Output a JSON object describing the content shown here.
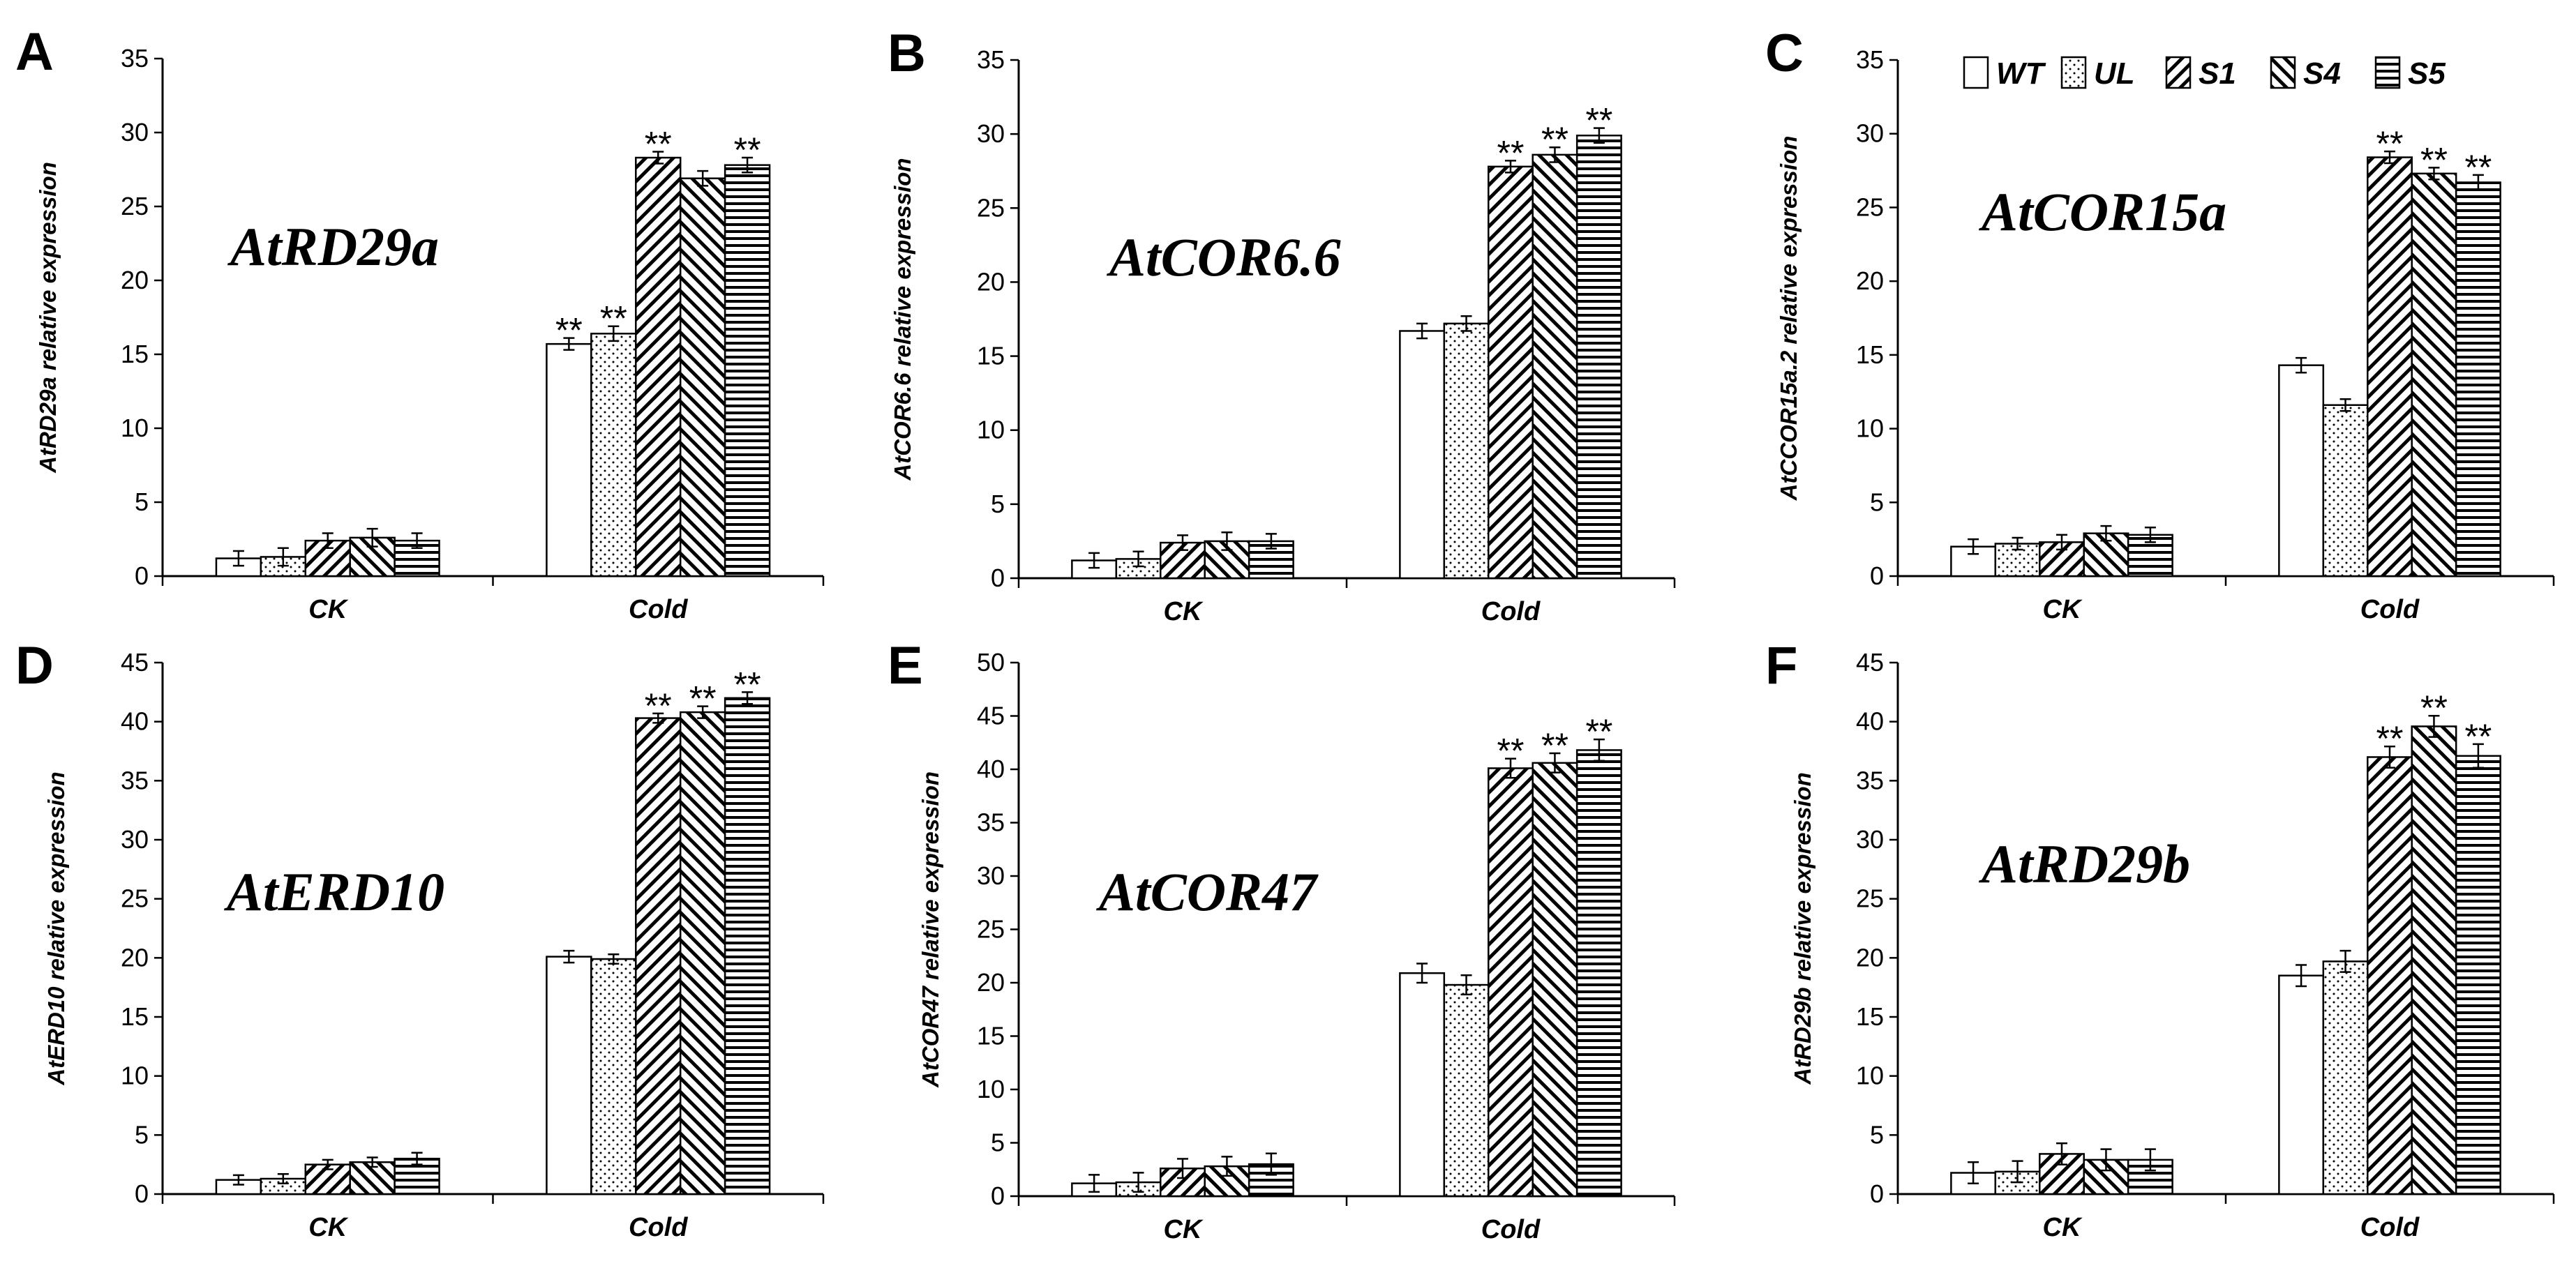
{
  "figure": {
    "legend": [
      {
        "key": "WT",
        "label": "WT",
        "pattern": "solid-white"
      },
      {
        "key": "UL",
        "label": "UL",
        "pattern": "dots"
      },
      {
        "key": "S1",
        "label": "S1",
        "pattern": "diag-down"
      },
      {
        "key": "S4",
        "label": "S4",
        "pattern": "diag-up"
      },
      {
        "key": "S5",
        "label": "S5",
        "pattern": "horizontal"
      }
    ],
    "colors": {
      "stroke": "#000000",
      "fill": "#ffffff"
    }
  },
  "chart_data": [
    {
      "panel": "A",
      "type": "bar",
      "gene_label": "AtRD29a",
      "ylabel": "AtRD29a relative expression",
      "ylim": [
        0,
        35
      ],
      "yticks": [
        0,
        5,
        10,
        15,
        20,
        25,
        30,
        35
      ],
      "categories": [
        "CK",
        "Cold"
      ],
      "series": [
        {
          "name": "WT",
          "values": [
            1.2,
            15.7
          ],
          "errors": [
            0.5,
            0.4
          ]
        },
        {
          "name": "UL",
          "values": [
            1.3,
            16.4
          ],
          "errors": [
            0.6,
            0.5
          ]
        },
        {
          "name": "S1",
          "values": [
            2.4,
            28.3
          ],
          "errors": [
            0.5,
            0.4
          ]
        },
        {
          "name": "S4",
          "values": [
            2.6,
            26.9
          ],
          "errors": [
            0.6,
            0.5
          ]
        },
        {
          "name": "S5",
          "values": [
            2.4,
            27.8
          ],
          "errors": [
            0.5,
            0.5
          ]
        }
      ],
      "significance": [
        [
          "",
          "**"
        ],
        [
          "",
          "**"
        ],
        [
          "",
          "**"
        ],
        [
          "",
          ""
        ],
        [
          "",
          "**"
        ]
      ]
    },
    {
      "panel": "B",
      "type": "bar",
      "gene_label": "AtCOR6.6",
      "ylabel": "AtCOR6.6 relative expression",
      "ylim": [
        0,
        35
      ],
      "yticks": [
        0,
        5,
        10,
        15,
        20,
        25,
        30,
        35
      ],
      "categories": [
        "CK",
        "Cold"
      ],
      "series": [
        {
          "name": "WT",
          "values": [
            1.2,
            16.7
          ],
          "errors": [
            0.5,
            0.5
          ]
        },
        {
          "name": "UL",
          "values": [
            1.3,
            17.2
          ],
          "errors": [
            0.5,
            0.5
          ]
        },
        {
          "name": "S1",
          "values": [
            2.4,
            27.8
          ],
          "errors": [
            0.5,
            0.4
          ]
        },
        {
          "name": "S4",
          "values": [
            2.5,
            28.6
          ],
          "errors": [
            0.6,
            0.5
          ]
        },
        {
          "name": "S5",
          "values": [
            2.5,
            29.9
          ],
          "errors": [
            0.5,
            0.5
          ]
        }
      ],
      "significance": [
        [
          "",
          ""
        ],
        [
          "",
          ""
        ],
        [
          "",
          "**"
        ],
        [
          "",
          "**"
        ],
        [
          "",
          "**"
        ]
      ]
    },
    {
      "panel": "C",
      "type": "bar",
      "gene_label": "AtCOR15a",
      "ylabel": "AtCCOR15a.2 relative expression",
      "ylim": [
        0,
        35
      ],
      "yticks": [
        0,
        5,
        10,
        15,
        20,
        25,
        30,
        35
      ],
      "categories": [
        "CK",
        "Cold"
      ],
      "series": [
        {
          "name": "WT",
          "values": [
            2.0,
            14.3
          ],
          "errors": [
            0.5,
            0.5
          ]
        },
        {
          "name": "UL",
          "values": [
            2.2,
            11.6
          ],
          "errors": [
            0.4,
            0.4
          ]
        },
        {
          "name": "S1",
          "values": [
            2.3,
            28.4
          ],
          "errors": [
            0.5,
            0.4
          ]
        },
        {
          "name": "S4",
          "values": [
            2.9,
            27.3
          ],
          "errors": [
            0.5,
            0.4
          ]
        },
        {
          "name": "S5",
          "values": [
            2.8,
            26.7
          ],
          "errors": [
            0.5,
            0.5
          ]
        }
      ],
      "significance": [
        [
          "",
          ""
        ],
        [
          "",
          ""
        ],
        [
          "",
          "**"
        ],
        [
          "",
          "**"
        ],
        [
          "",
          "**"
        ]
      ]
    },
    {
      "panel": "D",
      "type": "bar",
      "gene_label": "AtERD10",
      "ylabel": "AtERD10 relative expression",
      "ylim": [
        0,
        45
      ],
      "yticks": [
        0,
        5,
        10,
        15,
        20,
        25,
        30,
        35,
        40,
        45
      ],
      "categories": [
        "CK",
        "Cold"
      ],
      "series": [
        {
          "name": "WT",
          "values": [
            1.2,
            20.1
          ],
          "errors": [
            0.4,
            0.5
          ]
        },
        {
          "name": "UL",
          "values": [
            1.3,
            19.9
          ],
          "errors": [
            0.4,
            0.4
          ]
        },
        {
          "name": "S1",
          "values": [
            2.5,
            40.3
          ],
          "errors": [
            0.4,
            0.4
          ]
        },
        {
          "name": "S4",
          "values": [
            2.7,
            40.8
          ],
          "errors": [
            0.4,
            0.5
          ]
        },
        {
          "name": "S5",
          "values": [
            3.0,
            42.0
          ],
          "errors": [
            0.5,
            0.5
          ]
        }
      ],
      "significance": [
        [
          "",
          ""
        ],
        [
          "",
          ""
        ],
        [
          "",
          "**"
        ],
        [
          "",
          "**"
        ],
        [
          "",
          "**"
        ]
      ]
    },
    {
      "panel": "E",
      "type": "bar",
      "gene_label": "AtCOR47",
      "ylabel": "AtCOR47 relative expression",
      "ylim": [
        0,
        50
      ],
      "yticks": [
        0,
        5,
        10,
        15,
        20,
        25,
        30,
        35,
        40,
        45,
        50
      ],
      "categories": [
        "CK",
        "Cold"
      ],
      "series": [
        {
          "name": "WT",
          "values": [
            1.2,
            20.9
          ],
          "errors": [
            0.8,
            0.9
          ]
        },
        {
          "name": "UL",
          "values": [
            1.3,
            19.8
          ],
          "errors": [
            0.9,
            0.9
          ]
        },
        {
          "name": "S1",
          "values": [
            2.6,
            40.1
          ],
          "errors": [
            0.9,
            0.9
          ]
        },
        {
          "name": "S4",
          "values": [
            2.8,
            40.6
          ],
          "errors": [
            0.9,
            0.9
          ]
        },
        {
          "name": "S5",
          "values": [
            3.0,
            41.8
          ],
          "errors": [
            1.0,
            1.0
          ]
        }
      ],
      "significance": [
        [
          "",
          ""
        ],
        [
          "",
          ""
        ],
        [
          "",
          "**"
        ],
        [
          "",
          "**"
        ],
        [
          "",
          "**"
        ]
      ]
    },
    {
      "panel": "F",
      "type": "bar",
      "gene_label": "AtRD29b",
      "ylabel": "AtRD29b relative expression",
      "ylim": [
        0,
        45
      ],
      "yticks": [
        0,
        5,
        10,
        15,
        20,
        25,
        30,
        35,
        40,
        45
      ],
      "categories": [
        "CK",
        "Cold"
      ],
      "series": [
        {
          "name": "WT",
          "values": [
            1.8,
            18.5
          ],
          "errors": [
            0.9,
            0.9
          ]
        },
        {
          "name": "UL",
          "values": [
            1.9,
            19.7
          ],
          "errors": [
            0.9,
            0.9
          ]
        },
        {
          "name": "S1",
          "values": [
            3.4,
            37.0
          ],
          "errors": [
            0.9,
            0.9
          ]
        },
        {
          "name": "S4",
          "values": [
            2.9,
            39.6
          ],
          "errors": [
            0.9,
            0.9
          ]
        },
        {
          "name": "S5",
          "values": [
            2.9,
            37.1
          ],
          "errors": [
            0.9,
            1.0
          ]
        }
      ],
      "significance": [
        [
          "",
          ""
        ],
        [
          "",
          ""
        ],
        [
          "",
          "**"
        ],
        [
          "",
          "**"
        ],
        [
          "",
          "**"
        ]
      ]
    }
  ]
}
